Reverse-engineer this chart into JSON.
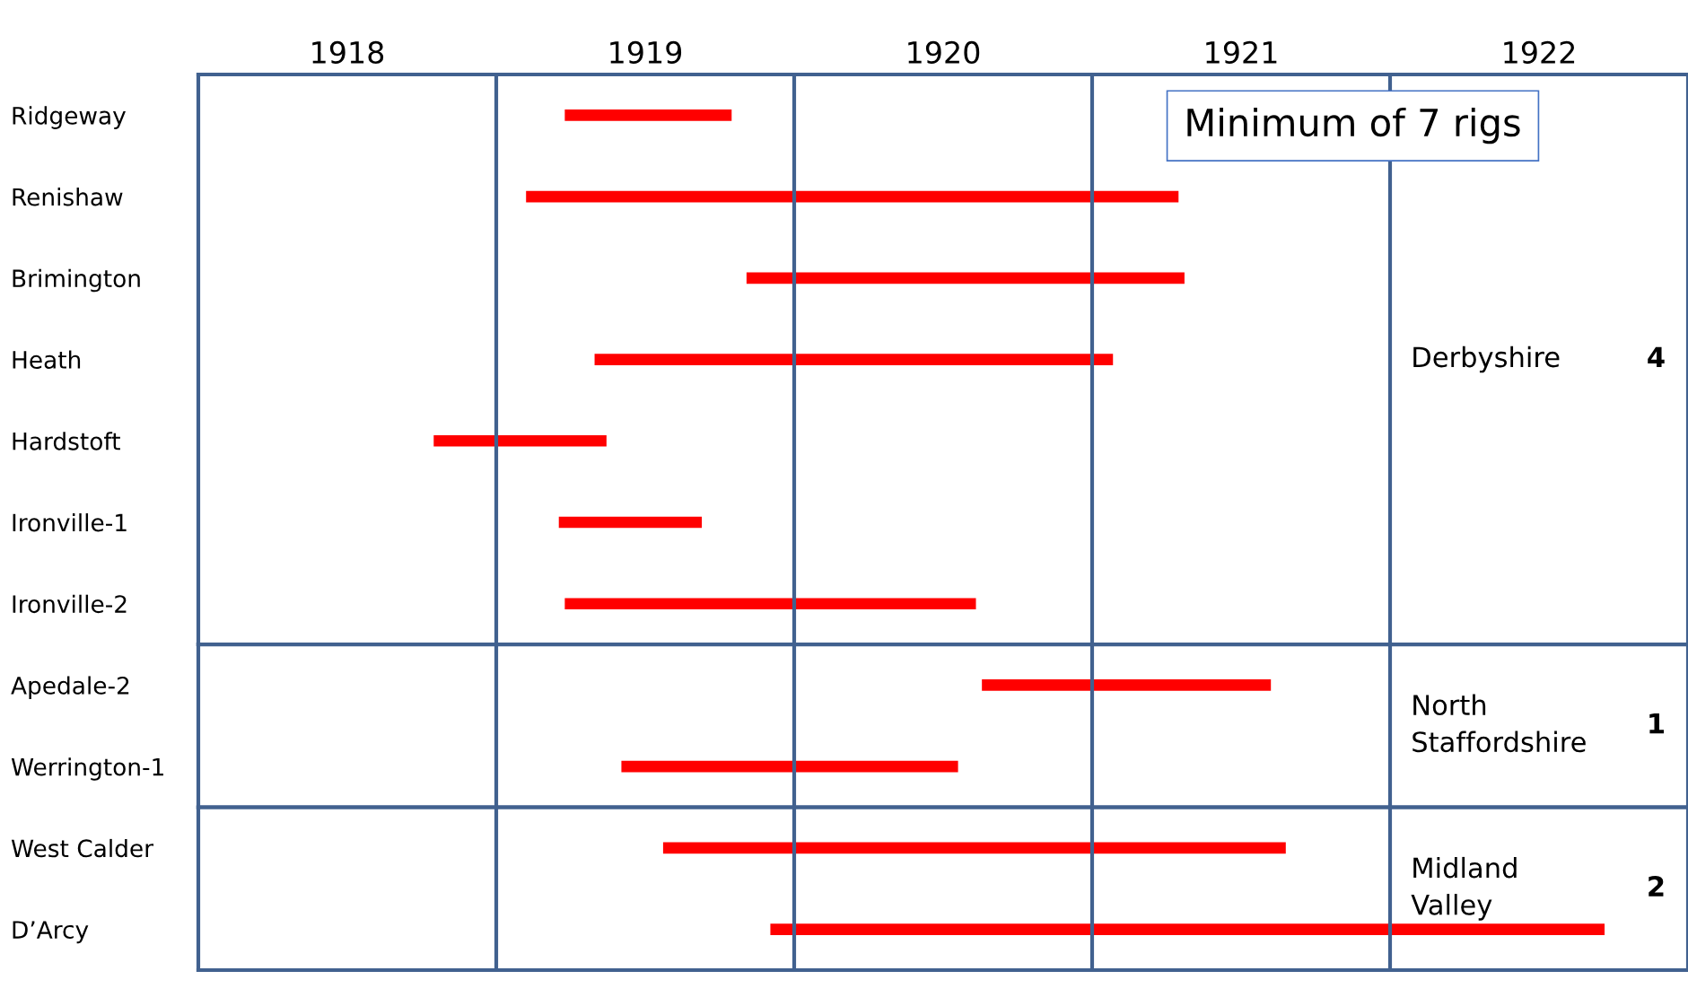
{
  "chart_data": [
    {
      "type": "bar",
      "orientation": "horizontal",
      "categories": [
        "Ridgeway",
        "Renishaw",
        "Brimington",
        "Heath",
        "Hardstoft",
        "Ironville-1",
        "Ironville-2"
      ],
      "base": [
        1919.23,
        1919.1,
        1919.84,
        1919.33,
        1918.79,
        1919.21,
        1919.23
      ],
      "values": [
        0.56,
        2.19,
        1.47,
        1.74,
        0.58,
        0.48,
        1.38
      ],
      "color": "#ff0000",
      "xlim": [
        1918,
        1923
      ],
      "xticks": [
        {
          "value": 1918.5,
          "label": "1918"
        },
        {
          "value": 1919.5,
          "label": "1919"
        },
        {
          "value": 1920.5,
          "label": "1920"
        },
        {
          "value": 1921.5,
          "label": "1921"
        },
        {
          "value": 1922.5,
          "label": "1922"
        }
      ],
      "ref_lines": [
        {
          "axis": "x",
          "value": 1919,
          "color": "#41618f"
        },
        {
          "axis": "x",
          "value": 1920,
          "color": "#41618f"
        },
        {
          "axis": "x",
          "value": 1921,
          "color": "#41618f"
        },
        {
          "axis": "x",
          "value": 1922,
          "color": "#41618f"
        }
      ],
      "annotations": [
        "Minimum of 7 rigs",
        "Derbyshire",
        "4"
      ]
    },
    {
      "type": "bar",
      "orientation": "horizontal",
      "categories": [
        "Apedale-2",
        "Werrington-1"
      ],
      "base": [
        1920.63,
        1919.42
      ],
      "values": [
        0.97,
        1.13
      ],
      "color": "#ff0000",
      "xlim": [
        1918,
        1923
      ],
      "tick_labels": "y",
      "ref_lines": [
        {
          "axis": "x",
          "value": 1919,
          "color": "#41618f"
        },
        {
          "axis": "x",
          "value": 1920,
          "color": "#41618f"
        },
        {
          "axis": "x",
          "value": 1921,
          "color": "#41618f"
        },
        {
          "axis": "x",
          "value": 1922,
          "color": "#41618f"
        }
      ],
      "annotations": [
        "North\nStaffordshire",
        "1"
      ]
    },
    {
      "type": "bar",
      "orientation": "horizontal",
      "categories": [
        "West Calder",
        "D’Arcy"
      ],
      "base": [
        1919.56,
        1919.92
      ],
      "values": [
        2.09,
        2.8
      ],
      "color": "#ff0000",
      "xlim": [
        1918,
        1923
      ],
      "tick_labels": "y",
      "ref_lines": [
        {
          "axis": "x",
          "value": 1919,
          "color": "#41618f"
        },
        {
          "axis": "x",
          "value": 1920,
          "color": "#41618f"
        },
        {
          "axis": "x",
          "value": 1921,
          "color": "#41618f"
        },
        {
          "axis": "x",
          "value": 1922,
          "color": "#41618f"
        }
      ],
      "annotations": [
        "Midland\nValley",
        "2"
      ]
    }
  ]
}
